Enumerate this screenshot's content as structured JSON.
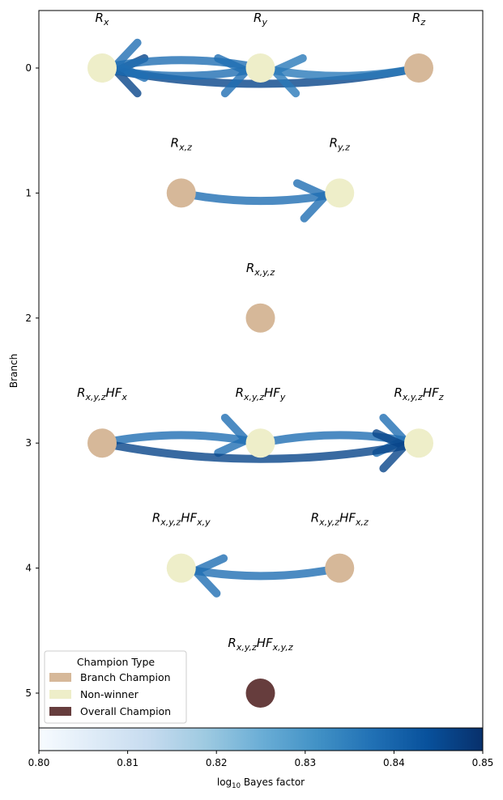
{
  "chart_data": {
    "type": "network",
    "ylabel": "Branch",
    "yticks": [
      "0",
      "1",
      "2",
      "3",
      "4",
      "5"
    ],
    "node_colors": {
      "Branch Champion": "#d6b899",
      "Non-winner": "#eeeec9",
      "Overall Champion": "#663d3d"
    },
    "nodes": [
      {
        "id": "Rx",
        "label": "R",
        "sub": "x",
        "sup_label": "",
        "branch": 0,
        "slot": 0,
        "type": "Non-winner"
      },
      {
        "id": "Ry",
        "label": "R",
        "sub": "y",
        "sup_label": "",
        "branch": 0,
        "slot": 2,
        "type": "Non-winner"
      },
      {
        "id": "Rz",
        "label": "R",
        "sub": "z",
        "sup_label": "",
        "branch": 0,
        "slot": 4,
        "type": "Branch Champion"
      },
      {
        "id": "Rxz",
        "label": "R",
        "sub": "x,z",
        "sup_label": "",
        "branch": 1,
        "slot": 1,
        "type": "Branch Champion"
      },
      {
        "id": "Ryz",
        "label": "R",
        "sub": "y,z",
        "sup_label": "",
        "branch": 1,
        "slot": 3,
        "type": "Non-winner"
      },
      {
        "id": "Rxyz",
        "label": "R",
        "sub": "x,y,z",
        "sup_label": "",
        "branch": 2,
        "slot": 2,
        "type": "Branch Champion"
      },
      {
        "id": "HFx",
        "label": "R",
        "sub": "x,y,z",
        "suffix": "HF",
        "suffix_sub": "x",
        "branch": 3,
        "slot": 0,
        "type": "Branch Champion"
      },
      {
        "id": "HFy",
        "label": "R",
        "sub": "x,y,z",
        "suffix": "HF",
        "suffix_sub": "y",
        "branch": 3,
        "slot": 2,
        "type": "Non-winner"
      },
      {
        "id": "HFz",
        "label": "R",
        "sub": "x,y,z",
        "suffix": "HF",
        "suffix_sub": "z",
        "branch": 3,
        "slot": 4,
        "type": "Non-winner"
      },
      {
        "id": "HFxy",
        "label": "R",
        "sub": "x,y,z",
        "suffix": "HF",
        "suffix_sub": "x,y",
        "branch": 4,
        "slot": 1,
        "type": "Non-winner"
      },
      {
        "id": "HFxz",
        "label": "R",
        "sub": "x,y,z",
        "suffix": "HF",
        "suffix_sub": "x,z",
        "branch": 4,
        "slot": 3,
        "type": "Branch Champion"
      },
      {
        "id": "HFxyz",
        "label": "R",
        "sub": "x,y,z",
        "suffix": "HF",
        "suffix_sub": "x,y,z",
        "branch": 5,
        "slot": 2,
        "type": "Overall Champion"
      }
    ],
    "edges": [
      {
        "from": "Rz",
        "to": "Rx",
        "bayes": 0.846,
        "bend": -1
      },
      {
        "from": "Ry",
        "to": "Rx",
        "bayes": 0.838,
        "bend": 1
      },
      {
        "from": "Rz",
        "to": "Ry",
        "bayes": 0.836,
        "bend": -1
      },
      {
        "from": "Rx",
        "to": "Ry",
        "bayes": 0.838,
        "bend": 1
      },
      {
        "from": "Rxz",
        "to": "Ryz",
        "bayes": 0.838,
        "bend": 1
      },
      {
        "from": "HFx",
        "to": "HFy",
        "bayes": 0.838,
        "bend": -1
      },
      {
        "from": "HFy",
        "to": "HFz",
        "bayes": 0.838,
        "bend": -1
      },
      {
        "from": "HFx",
        "to": "HFz",
        "bayes": 0.846,
        "bend": 1
      },
      {
        "from": "HFxz",
        "to": "HFxy",
        "bayes": 0.838,
        "bend": -1
      }
    ],
    "legend": {
      "title": "Champion Type",
      "entries": [
        "Branch Champion",
        "Non-winner",
        "Overall Champion"
      ],
      "placement": "lower-left"
    },
    "colorbar": {
      "label": "log10 Bayes factor",
      "label_prefix": "log",
      "label_sub": "10",
      "label_suffix": " Bayes factor",
      "min": 0.8,
      "max": 0.85,
      "ticks": [
        "0.80",
        "0.81",
        "0.82",
        "0.83",
        "0.84",
        "0.85"
      ],
      "colormap": "Blues"
    }
  }
}
